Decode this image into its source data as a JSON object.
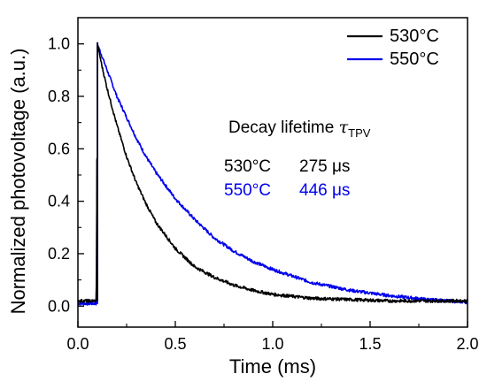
{
  "chart_data": {
    "type": "line",
    "xlabel": "Time (ms)",
    "ylabel": "Normalized photovoltage (a.u.)",
    "xlim": [
      0.0,
      2.0
    ],
    "ylim": [
      -0.08,
      1.1
    ],
    "xticks": [
      "0.0",
      "0.5",
      "1.0",
      "1.5",
      "2.0"
    ],
    "xtick_values": [
      0.0,
      0.5,
      1.0,
      1.5,
      2.0
    ],
    "yticks": [
      "0.0",
      "0.2",
      "0.4",
      "0.6",
      "0.8",
      "1.0"
    ],
    "ytick_values": [
      0.0,
      0.2,
      0.4,
      0.6,
      0.8,
      1.0
    ],
    "grid": false,
    "legend_position": "top-right",
    "series": [
      {
        "name": "530°C",
        "color": "#000000",
        "pulse_time_ms": 0.1,
        "baseline": 0.02,
        "lifetime_us": 275,
        "x": [
          0.0,
          0.05,
          0.095,
          0.1,
          0.125,
          0.15,
          0.2,
          0.25,
          0.3,
          0.35,
          0.4,
          0.45,
          0.5,
          0.6,
          0.7,
          0.8,
          0.9,
          1.0,
          1.2,
          1.4,
          1.6,
          1.8,
          2.0
        ],
        "y": [
          0.02,
          0.02,
          0.02,
          1.0,
          0.91,
          0.83,
          0.69,
          0.57,
          0.47,
          0.39,
          0.32,
          0.27,
          0.22,
          0.15,
          0.11,
          0.08,
          0.06,
          0.045,
          0.03,
          0.025,
          0.02,
          0.02,
          0.02
        ]
      },
      {
        "name": "550°C",
        "color": "#0000ee",
        "pulse_time_ms": 0.1,
        "baseline": 0.01,
        "lifetime_us": 446,
        "x": [
          0.0,
          0.05,
          0.095,
          0.1,
          0.125,
          0.15,
          0.2,
          0.25,
          0.3,
          0.35,
          0.4,
          0.45,
          0.5,
          0.6,
          0.7,
          0.8,
          0.9,
          1.0,
          1.2,
          1.4,
          1.6,
          1.8,
          2.0
        ],
        "y": [
          0.01,
          0.01,
          0.01,
          1.0,
          0.95,
          0.9,
          0.8,
          0.72,
          0.64,
          0.57,
          0.51,
          0.46,
          0.41,
          0.33,
          0.26,
          0.21,
          0.17,
          0.14,
          0.09,
          0.06,
          0.04,
          0.025,
          0.015
        ]
      }
    ],
    "annotation": {
      "title_prefix": "Decay lifetime",
      "tau_symbol": "τ",
      "tau_subscript": "TPV",
      "rows": [
        {
          "label": "530°C",
          "value": "275 μs",
          "color": "#000000"
        },
        {
          "label": "550°C",
          "value": "446 μs",
          "color": "#0000ee"
        }
      ]
    }
  }
}
